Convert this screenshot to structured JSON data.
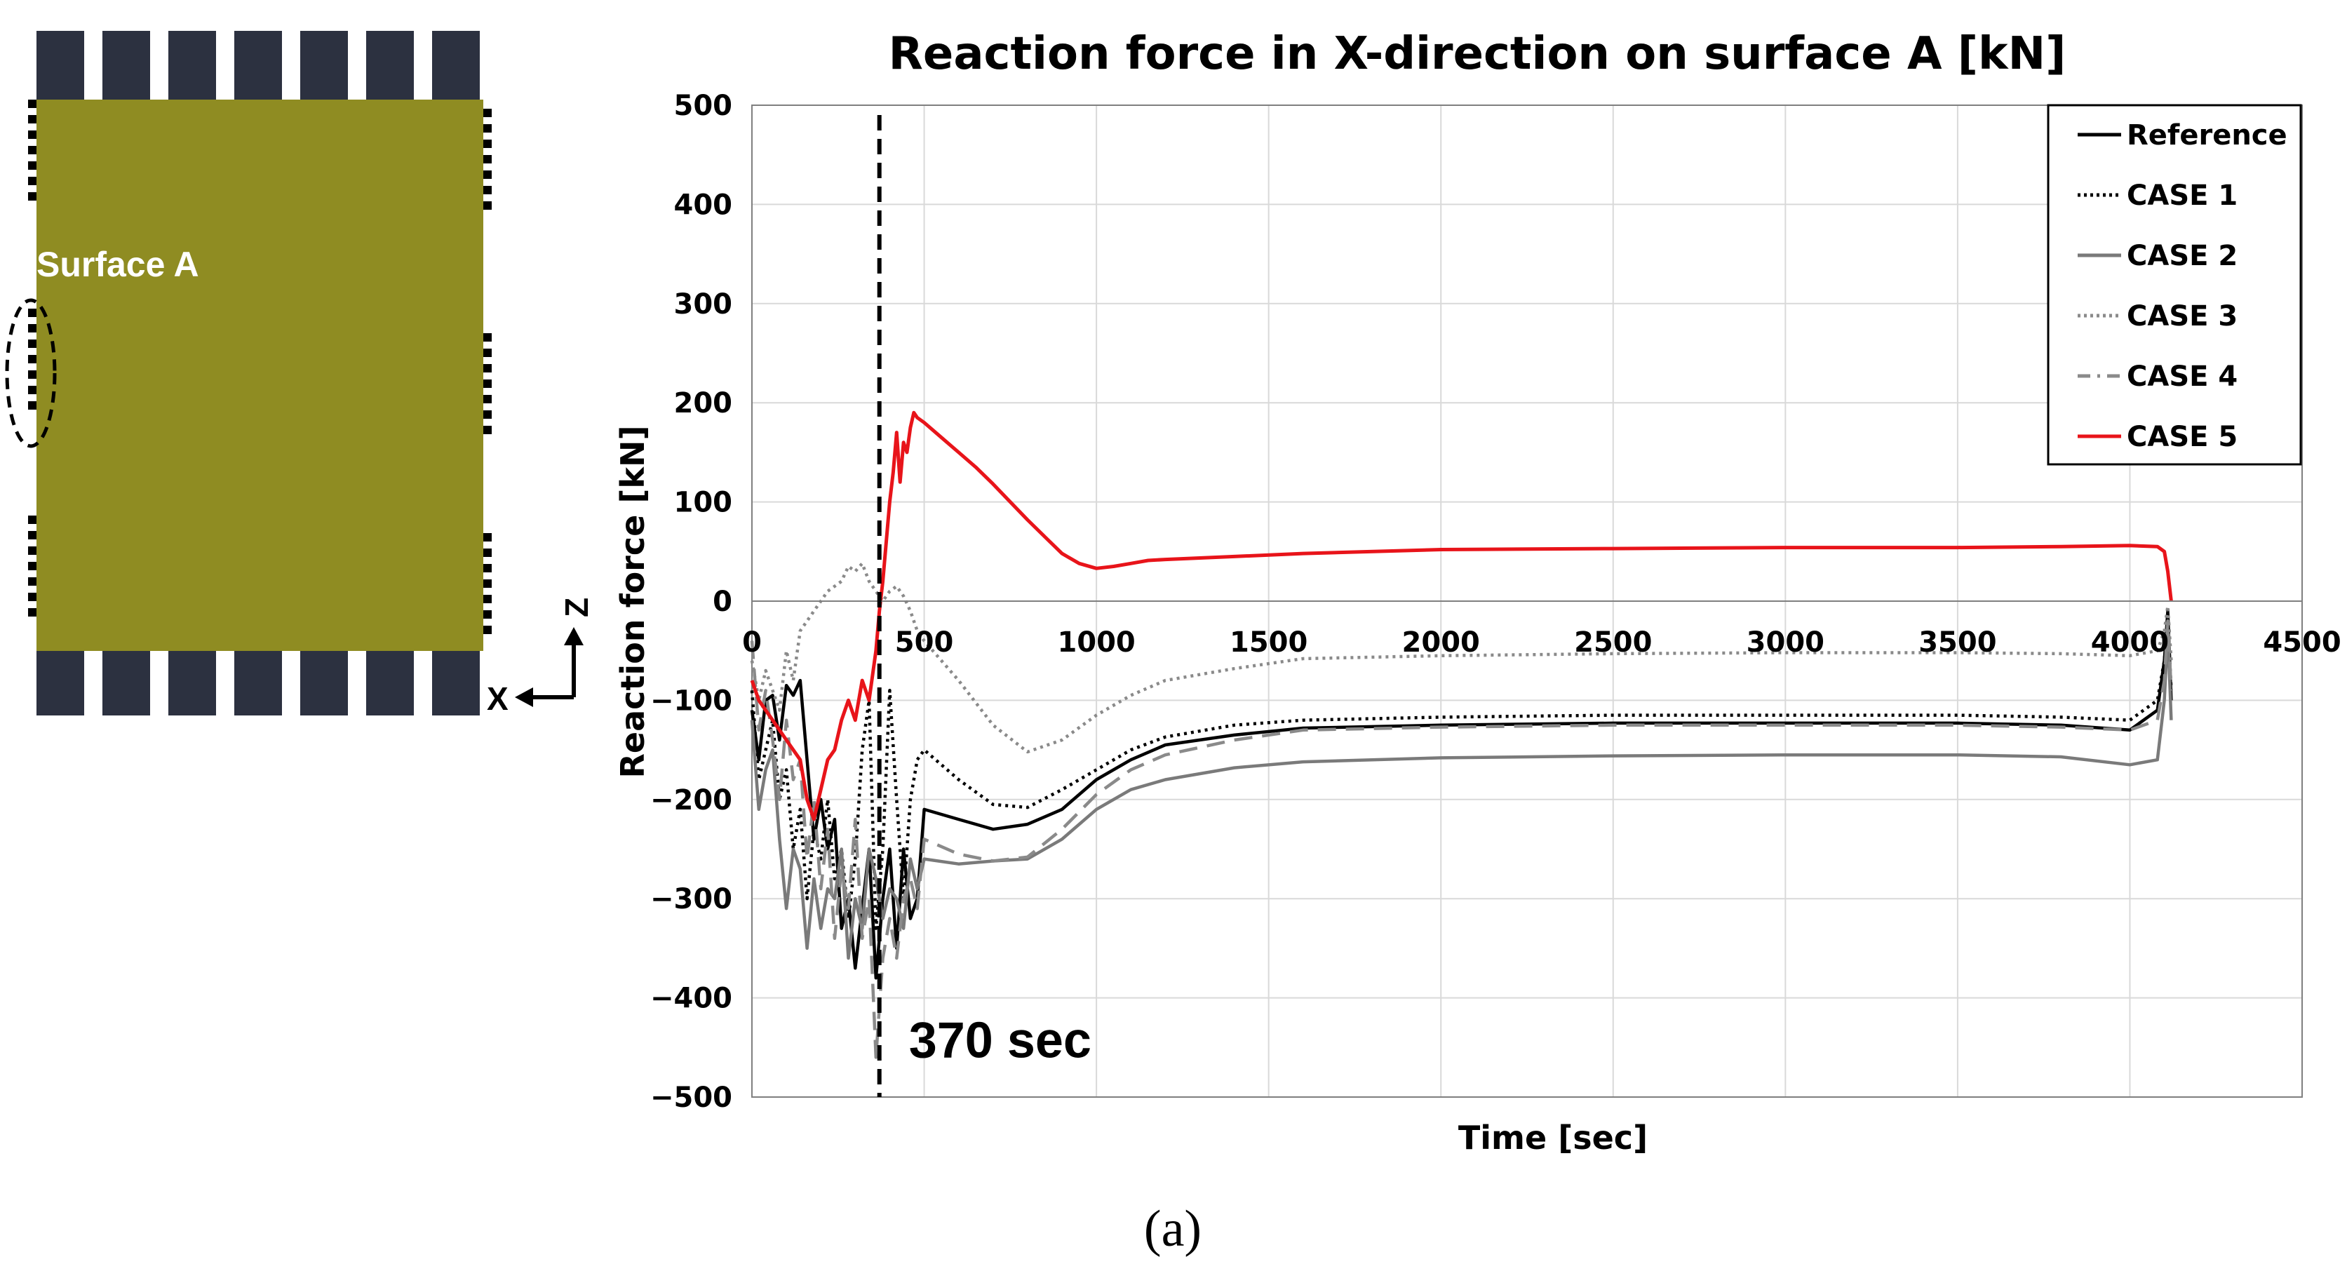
{
  "figure": {
    "caption": "(a)",
    "diagram": {
      "surface_label": "Surface A",
      "axis_z": "Z",
      "axis_x": "X",
      "colors": {
        "panel": "#8f8c22",
        "cylinder": "#2c3140"
      }
    }
  },
  "chart_data": {
    "type": "line",
    "title": "Reaction force in X-direction on surface A [kN]",
    "xlabel": "Time [sec]",
    "ylabel": "Reaction force [kN]",
    "xlim": [
      0,
      4500
    ],
    "ylim": [
      -500,
      500
    ],
    "x_ticks": [
      "0",
      "500",
      "1000",
      "1500",
      "2000",
      "2500",
      "3000",
      "3500",
      "4000",
      "4500"
    ],
    "y_ticks": [
      "500",
      "400",
      "300",
      "200",
      "100",
      "0",
      "−100",
      "−200",
      "−300",
      "−400",
      "−500"
    ],
    "x_tick_values": [
      0,
      500,
      1000,
      1500,
      2000,
      2500,
      3000,
      3500,
      4000,
      4500
    ],
    "y_tick_values": [
      500,
      400,
      300,
      200,
      100,
      0,
      -100,
      -200,
      -300,
      -400,
      -500
    ],
    "grid": true,
    "legend_position": "top-right",
    "annotation": {
      "text": "370 sec",
      "x": 370
    },
    "series": [
      {
        "name": "Reference",
        "color": "#000000",
        "dash": "solid",
        "x": [
          0,
          20,
          40,
          60,
          80,
          100,
          120,
          140,
          160,
          180,
          200,
          220,
          240,
          260,
          280,
          300,
          320,
          340,
          360,
          380,
          400,
          420,
          440,
          460,
          480,
          500,
          600,
          700,
          800,
          900,
          1000,
          1100,
          1200,
          1400,
          1600,
          2000,
          2500,
          3000,
          3500,
          3800,
          4000,
          4080,
          4100,
          4110,
          4120
        ],
        "y": [
          -110,
          -160,
          -100,
          -95,
          -140,
          -85,
          -95,
          -80,
          -160,
          -240,
          -200,
          -250,
          -220,
          -330,
          -300,
          -370,
          -310,
          -250,
          -380,
          -300,
          -250,
          -350,
          -250,
          -320,
          -300,
          -210,
          -220,
          -230,
          -225,
          -210,
          -180,
          -160,
          -145,
          -135,
          -128,
          -125,
          -123,
          -123,
          -123,
          -125,
          -130,
          -110,
          -60,
          -10,
          -100
        ]
      },
      {
        "name": "CASE 1",
        "color": "#000000",
        "dash": "dotted",
        "x": [
          0,
          20,
          40,
          60,
          80,
          100,
          120,
          140,
          160,
          180,
          200,
          220,
          240,
          260,
          280,
          300,
          320,
          340,
          360,
          380,
          400,
          420,
          440,
          460,
          480,
          500,
          600,
          700,
          800,
          900,
          1000,
          1100,
          1200,
          1400,
          1600,
          2000,
          2500,
          3000,
          3500,
          3800,
          4000,
          4080,
          4100,
          4110,
          4120
        ],
        "y": [
          -90,
          -180,
          -150,
          -120,
          -200,
          -170,
          -250,
          -210,
          -300,
          -230,
          -260,
          -200,
          -280,
          -250,
          -320,
          -260,
          -150,
          -100,
          -330,
          -250,
          -90,
          -200,
          -300,
          -200,
          -160,
          -150,
          -180,
          -205,
          -208,
          -190,
          -170,
          -150,
          -137,
          -125,
          -120,
          -117,
          -115,
          -115,
          -115,
          -117,
          -120,
          -100,
          -60,
          -20,
          -90
        ]
      },
      {
        "name": "CASE 2",
        "color": "#7a7a7a",
        "dash": "solid",
        "x": [
          0,
          20,
          40,
          60,
          80,
          100,
          120,
          140,
          160,
          180,
          200,
          220,
          240,
          260,
          280,
          300,
          320,
          340,
          360,
          380,
          400,
          420,
          440,
          460,
          480,
          500,
          600,
          700,
          800,
          900,
          1000,
          1100,
          1200,
          1400,
          1600,
          2000,
          2500,
          3000,
          3500,
          3800,
          4000,
          4080,
          4100,
          4110,
          4120
        ],
        "y": [
          -120,
          -210,
          -170,
          -150,
          -240,
          -310,
          -250,
          -270,
          -350,
          -280,
          -330,
          -290,
          -300,
          -250,
          -360,
          -300,
          -330,
          -250,
          -280,
          -320,
          -290,
          -300,
          -330,
          -260,
          -290,
          -260,
          -265,
          -262,
          -260,
          -240,
          -210,
          -190,
          -180,
          -168,
          -162,
          -158,
          -156,
          -155,
          -155,
          -157,
          -165,
          -160,
          -100,
          -30,
          -120
        ]
      },
      {
        "name": "CASE 3",
        "color": "#8a8a8a",
        "dash": "dotted",
        "x": [
          0,
          20,
          40,
          60,
          80,
          100,
          120,
          140,
          160,
          180,
          200,
          220,
          240,
          260,
          280,
          300,
          320,
          340,
          360,
          380,
          400,
          420,
          440,
          460,
          480,
          500,
          600,
          700,
          800,
          900,
          1000,
          1100,
          1200,
          1400,
          1600,
          2000,
          2500,
          3000,
          3500,
          3800,
          4000,
          4080,
          4100,
          4110,
          4120
        ],
        "y": [
          -60,
          -100,
          -70,
          -90,
          -110,
          -50,
          -80,
          -30,
          -20,
          -10,
          0,
          10,
          15,
          20,
          35,
          30,
          38,
          20,
          10,
          0,
          10,
          15,
          5,
          -10,
          -30,
          -40,
          -80,
          -125,
          -152,
          -140,
          -115,
          -95,
          -80,
          -68,
          -58,
          -55,
          -53,
          -52,
          -52,
          -53,
          -55,
          -50,
          -30,
          -5,
          -60
        ]
      },
      {
        "name": "CASE 4",
        "color": "#8a8a8a",
        "dash": "dashed",
        "x": [
          0,
          20,
          40,
          60,
          80,
          100,
          120,
          140,
          160,
          180,
          200,
          220,
          240,
          260,
          280,
          300,
          320,
          340,
          360,
          380,
          400,
          420,
          440,
          460,
          480,
          500,
          600,
          700,
          800,
          900,
          1000,
          1100,
          1200,
          1400,
          1600,
          2000,
          2500,
          3000,
          3500,
          3800,
          4000,
          4080,
          4100,
          4110,
          4120
        ],
        "y": [
          -40,
          -130,
          -90,
          -140,
          -200,
          -120,
          -180,
          -160,
          -260,
          -200,
          -290,
          -230,
          -340,
          -270,
          -310,
          -220,
          -340,
          -300,
          -460,
          -360,
          -320,
          -360,
          -300,
          -280,
          -310,
          -240,
          -255,
          -262,
          -258,
          -230,
          -195,
          -170,
          -155,
          -140,
          -130,
          -127,
          -125,
          -125,
          -125,
          -127,
          -130,
          -120,
          -80,
          -20,
          -90
        ]
      },
      {
        "name": "CASE 5",
        "color": "#e8141a",
        "dash": "solid",
        "x": [
          0,
          20,
          40,
          60,
          80,
          100,
          120,
          140,
          160,
          180,
          200,
          220,
          240,
          260,
          280,
          300,
          320,
          340,
          360,
          370,
          380,
          390,
          400,
          410,
          420,
          430,
          440,
          450,
          460,
          470,
          480,
          500,
          550,
          600,
          650,
          700,
          750,
          800,
          850,
          900,
          950,
          1000,
          1050,
          1100,
          1150,
          1200,
          1400,
          1600,
          2000,
          2500,
          3000,
          3500,
          3800,
          4000,
          4080,
          4100,
          4110,
          4120
        ],
        "y": [
          -80,
          -100,
          -110,
          -120,
          -130,
          -140,
          -150,
          -160,
          -200,
          -220,
          -190,
          -160,
          -150,
          -120,
          -100,
          -120,
          -80,
          -100,
          -50,
          -10,
          20,
          60,
          100,
          130,
          170,
          120,
          160,
          150,
          175,
          190,
          185,
          180,
          165,
          150,
          135,
          118,
          100,
          82,
          65,
          48,
          38,
          33,
          35,
          38,
          41,
          42,
          45,
          48,
          52,
          53,
          54,
          54,
          55,
          56,
          55,
          50,
          30,
          0
        ]
      }
    ]
  }
}
